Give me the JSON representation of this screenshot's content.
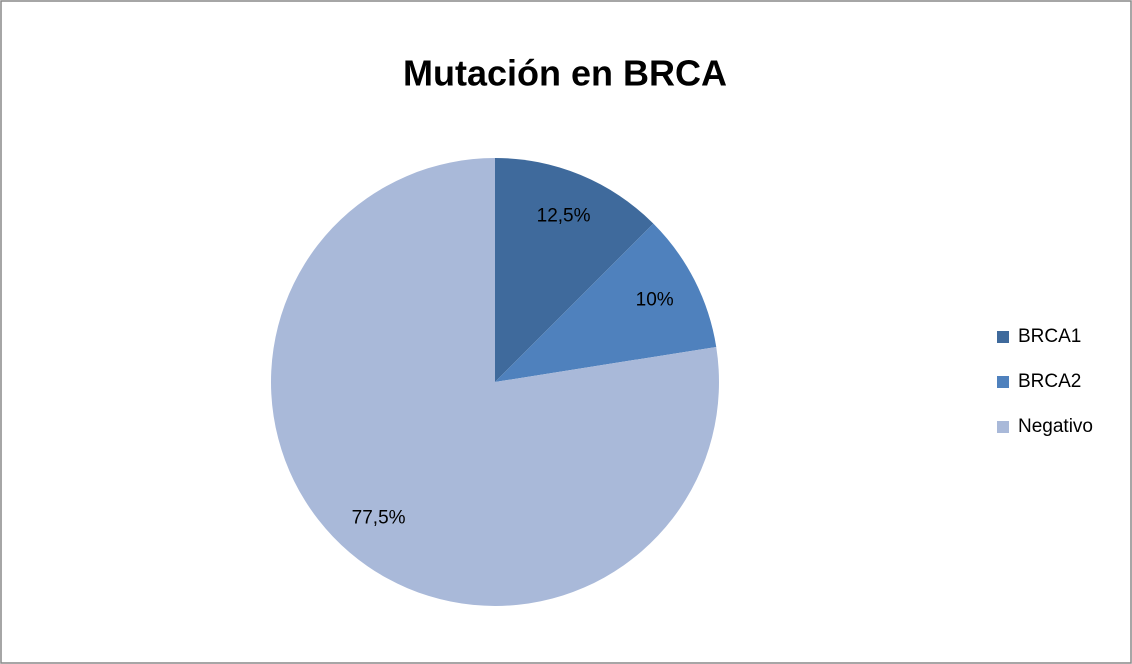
{
  "chart_data": {
    "type": "pie",
    "title": "Mutación en BRCA",
    "categories": [
      "BRCA1",
      "BRCA2",
      "Negativo"
    ],
    "values": [
      12.5,
      10,
      77.5
    ],
    "value_labels": [
      "12,5%",
      "10%",
      "77,5%"
    ],
    "colors": [
      "#3f6a9c",
      "#4f81bd",
      "#a9b9d9"
    ],
    "legend": "right"
  }
}
